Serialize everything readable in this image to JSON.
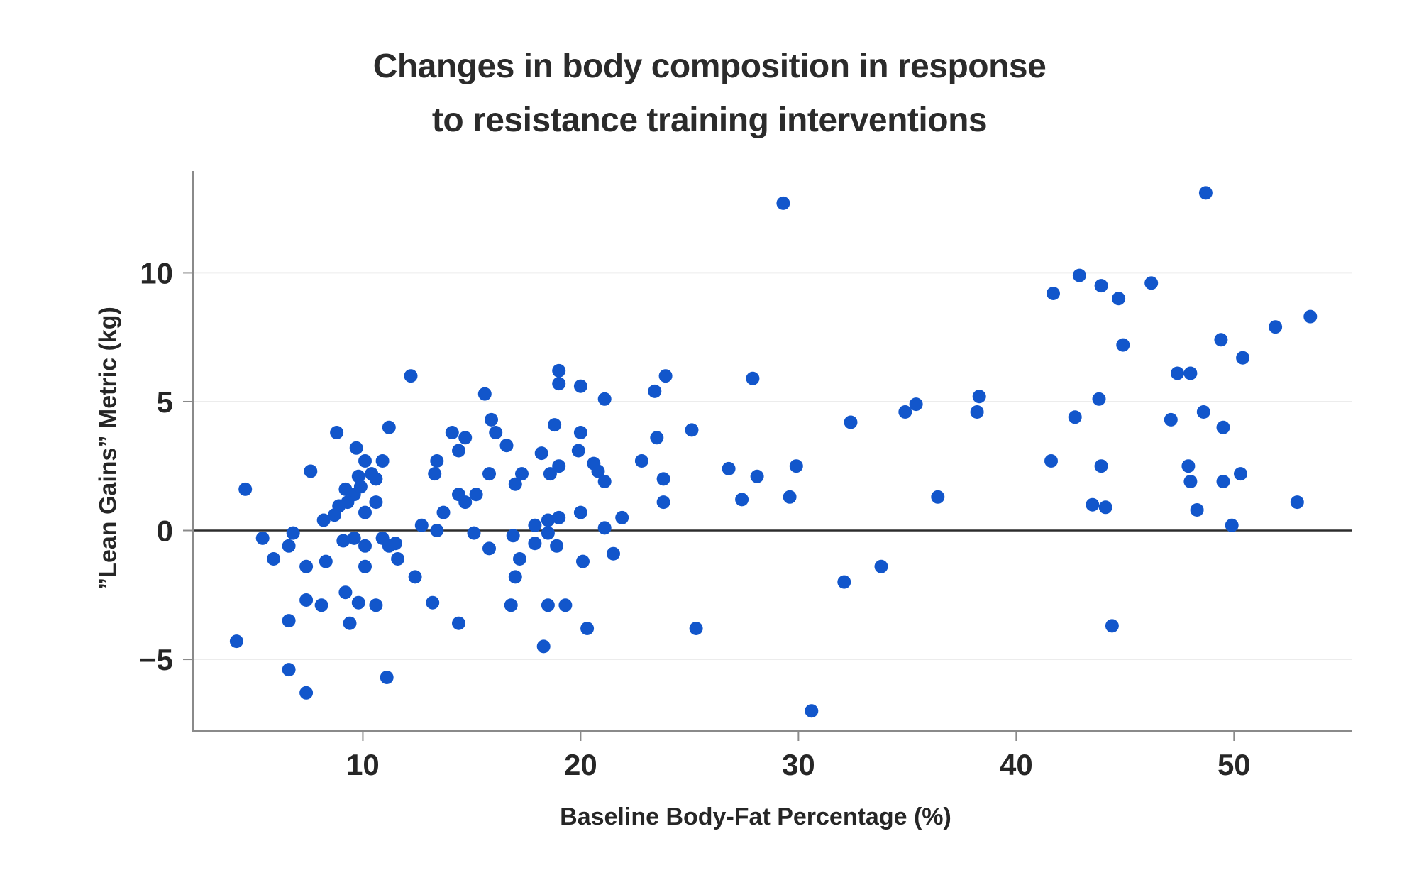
{
  "figure": {
    "title_line1": "Changes in body composition in response",
    "title_line2": "to resistance training interventions",
    "xlabel": "Baseline Body-Fat Percentage (%)",
    "ylabel": "”Lean Gains” Metric (kg)"
  },
  "chart_data": {
    "type": "scatter",
    "title": "Changes in body composition in response to resistance training interventions",
    "xlabel": "Baseline Body-Fat Percentage (%)",
    "ylabel": "”Lean Gains” Metric (kg)",
    "xlim": [
      2.2,
      55.43
    ],
    "ylim": [
      -7.78,
      13.95
    ],
    "xticks": [
      10,
      20,
      30,
      40,
      50
    ],
    "yticks": [
      -5,
      0,
      5,
      10
    ],
    "grid": "horizontal-only",
    "zero_line": true,
    "legend": "none",
    "point_color": "#1256CB",
    "axis_color": "#8a8a8a",
    "grid_color": "#ececec",
    "zero_line_color": "#2d2d2d",
    "tick_label_color": "#262626",
    "points": [
      [
        12.2,
        6.0
      ],
      [
        15.6,
        5.3
      ],
      [
        8.8,
        3.8
      ],
      [
        11.2,
        4.0
      ],
      [
        9.7,
        3.2
      ],
      [
        14.1,
        3.8
      ],
      [
        14.7,
        3.6
      ],
      [
        15.9,
        4.3
      ],
      [
        29.3,
        12.7
      ],
      [
        19.0,
        6.2
      ],
      [
        19.0,
        5.7
      ],
      [
        20.0,
        5.6
      ],
      [
        21.1,
        5.1
      ],
      [
        23.4,
        5.4
      ],
      [
        23.9,
        6.0
      ],
      [
        27.9,
        5.9
      ],
      [
        16.1,
        3.8
      ],
      [
        16.6,
        3.3
      ],
      [
        18.8,
        4.1
      ],
      [
        20.0,
        3.8
      ],
      [
        18.2,
        3.0
      ],
      [
        19.9,
        3.1
      ],
      [
        23.5,
        3.6
      ],
      [
        25.1,
        3.9
      ],
      [
        42.9,
        9.9
      ],
      [
        41.7,
        9.2
      ],
      [
        32.4,
        4.2
      ],
      [
        34.9,
        4.6
      ],
      [
        35.4,
        4.9
      ],
      [
        38.3,
        5.2
      ],
      [
        38.2,
        4.6
      ],
      [
        42.7,
        4.4
      ],
      [
        48.7,
        13.1
      ],
      [
        43.9,
        9.5
      ],
      [
        46.2,
        9.6
      ],
      [
        44.7,
        9.0
      ],
      [
        53.5,
        8.3
      ],
      [
        51.9,
        7.9
      ],
      [
        49.4,
        7.4
      ],
      [
        44.9,
        7.2
      ],
      [
        50.4,
        6.7
      ],
      [
        47.4,
        6.1
      ],
      [
        48.0,
        6.1
      ],
      [
        43.8,
        5.1
      ],
      [
        48.6,
        4.6
      ],
      [
        47.1,
        4.3
      ],
      [
        49.5,
        4.0
      ],
      [
        10.1,
        2.7
      ],
      [
        10.9,
        2.7
      ],
      [
        7.6,
        2.3
      ],
      [
        10.4,
        2.2
      ],
      [
        10.6,
        2.0
      ],
      [
        9.8,
        2.1
      ],
      [
        9.2,
        1.6
      ],
      [
        9.6,
        1.4
      ],
      [
        9.9,
        1.7
      ],
      [
        4.6,
        1.6
      ],
      [
        8.9,
        0.95
      ],
      [
        9.3,
        1.1
      ],
      [
        10.1,
        0.7
      ],
      [
        10.6,
        1.1
      ],
      [
        8.7,
        0.6
      ],
      [
        8.2,
        0.4
      ],
      [
        6.8,
        -0.1
      ],
      [
        5.4,
        -0.3
      ],
      [
        6.6,
        -0.6
      ],
      [
        5.9,
        -1.1
      ],
      [
        7.4,
        -1.4
      ],
      [
        8.3,
        -1.2
      ],
      [
        9.1,
        -0.4
      ],
      [
        9.6,
        -0.3
      ],
      [
        10.1,
        -0.6
      ],
      [
        10.1,
        -1.4
      ],
      [
        10.9,
        -0.3
      ],
      [
        11.2,
        -0.6
      ],
      [
        11.5,
        -0.5
      ],
      [
        11.6,
        -1.1
      ],
      [
        12.4,
        -1.8
      ],
      [
        9.2,
        -2.4
      ],
      [
        7.4,
        -2.7
      ],
      [
        8.1,
        -2.9
      ],
      [
        9.8,
        -2.8
      ],
      [
        10.6,
        -2.9
      ],
      [
        13.2,
        -2.8
      ],
      [
        6.6,
        -3.5
      ],
      [
        9.4,
        -3.6
      ],
      [
        14.4,
        -3.6
      ],
      [
        4.2,
        -4.3
      ],
      [
        6.6,
        -5.4
      ],
      [
        11.1,
        -5.7
      ],
      [
        7.4,
        -6.3
      ],
      [
        12.7,
        0.2
      ],
      [
        13.4,
        0.0
      ],
      [
        15.1,
        -0.1
      ],
      [
        15.8,
        -0.7
      ],
      [
        13.7,
        0.7
      ],
      [
        14.4,
        3.1
      ],
      [
        14.4,
        1.4
      ],
      [
        14.7,
        1.1
      ],
      [
        15.2,
        1.4
      ],
      [
        13.4,
        2.7
      ],
      [
        13.3,
        2.2
      ],
      [
        17.3,
        2.2
      ],
      [
        17.0,
        1.8
      ],
      [
        18.6,
        2.2
      ],
      [
        19.0,
        2.5
      ],
      [
        20.6,
        2.6
      ],
      [
        20.8,
        2.3
      ],
      [
        21.1,
        1.9
      ],
      [
        22.8,
        2.7
      ],
      [
        23.8,
        2.0
      ],
      [
        23.8,
        1.1
      ],
      [
        20.0,
        0.7
      ],
      [
        21.9,
        0.5
      ],
      [
        21.1,
        0.1
      ],
      [
        17.9,
        0.2
      ],
      [
        18.5,
        0.4
      ],
      [
        19.0,
        0.5
      ],
      [
        18.5,
        -0.1
      ],
      [
        16.9,
        -0.2
      ],
      [
        17.9,
        -0.5
      ],
      [
        18.9,
        -0.6
      ],
      [
        17.2,
        -1.1
      ],
      [
        17.0,
        -1.8
      ],
      [
        20.1,
        -1.2
      ],
      [
        21.5,
        -0.9
      ],
      [
        16.8,
        -2.9
      ],
      [
        18.5,
        -2.9
      ],
      [
        19.3,
        -2.9
      ],
      [
        20.3,
        -3.8
      ],
      [
        25.3,
        -3.8
      ],
      [
        18.3,
        -4.5
      ],
      [
        26.8,
        2.4
      ],
      [
        28.1,
        2.1
      ],
      [
        27.4,
        1.2
      ],
      [
        15.8,
        2.2
      ],
      [
        29.9,
        2.5
      ],
      [
        29.6,
        1.3
      ],
      [
        36.4,
        1.3
      ],
      [
        41.6,
        2.7
      ],
      [
        33.8,
        -1.4
      ],
      [
        32.1,
        -2.0
      ],
      [
        30.6,
        -7.0
      ],
      [
        43.9,
        2.5
      ],
      [
        47.9,
        2.5
      ],
      [
        48.0,
        1.9
      ],
      [
        49.5,
        1.9
      ],
      [
        50.3,
        2.2
      ],
      [
        43.5,
        1.0
      ],
      [
        44.1,
        0.9
      ],
      [
        48.3,
        0.8
      ],
      [
        52.9,
        1.1
      ],
      [
        49.9,
        0.2
      ],
      [
        44.4,
        -3.7
      ]
    ]
  }
}
